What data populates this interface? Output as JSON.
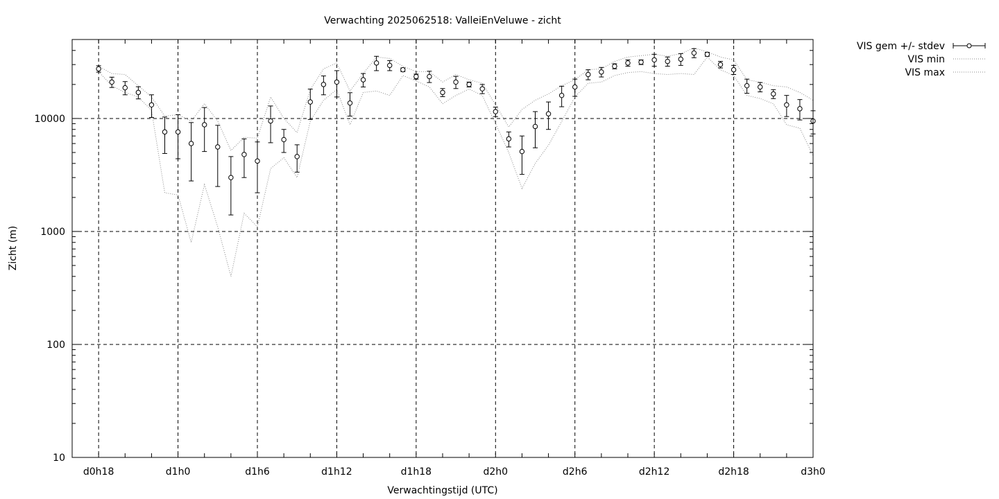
{
  "chart_data": {
    "type": "scatter",
    "title": "Verwachting 2025062518: ValleiEnVeluwe - zicht",
    "xlabel": "Verwachtingstijd (UTC)",
    "ylabel": "Zicht (m)",
    "y_scale": "log",
    "ylim": [
      10,
      50000
    ],
    "xlim_hours": [
      16,
      72
    ],
    "grid": true,
    "legend_position": "outside-right-top",
    "x_ticks": [
      {
        "h": 18,
        "label": "d0h18"
      },
      {
        "h": 24,
        "label": "d1h0"
      },
      {
        "h": 30,
        "label": "d1h6"
      },
      {
        "h": 36,
        "label": "d1h12"
      },
      {
        "h": 42,
        "label": "d1h18"
      },
      {
        "h": 48,
        "label": "d2h0"
      },
      {
        "h": 54,
        "label": "d2h6"
      },
      {
        "h": 60,
        "label": "d2h12"
      },
      {
        "h": 66,
        "label": "d2h18"
      },
      {
        "h": 72,
        "label": "d3h0"
      }
    ],
    "y_ticks": [
      {
        "v": 10,
        "label": "10"
      },
      {
        "v": 100,
        "label": "100"
      },
      {
        "v": 1000,
        "label": "1000"
      },
      {
        "v": 10000,
        "label": "10000"
      }
    ],
    "x": [
      18,
      19,
      20,
      21,
      22,
      23,
      24,
      25,
      26,
      27,
      28,
      29,
      30,
      31,
      32,
      33,
      34,
      35,
      36,
      37,
      38,
      39,
      40,
      41,
      42,
      43,
      44,
      45,
      46,
      47,
      48,
      49,
      50,
      51,
      52,
      53,
      54,
      55,
      56,
      57,
      58,
      59,
      60,
      61,
      62,
      63,
      64,
      65,
      66,
      67,
      68,
      69,
      70,
      71,
      72
    ],
    "series": [
      {
        "name": "VIS gem +/- stdev",
        "mean": [
          27500,
          21000,
          18700,
          17000,
          13200,
          7600,
          7600,
          6000,
          8800,
          5600,
          3000,
          4800,
          4200,
          9500,
          6500,
          4600,
          14000,
          20000,
          21000,
          13700,
          22000,
          31000,
          29500,
          27000,
          23500,
          23500,
          17000,
          21000,
          20000,
          18300,
          11500,
          6600,
          5100,
          8500,
          11000,
          16000,
          19000,
          24500,
          25800,
          29000,
          31000,
          31500,
          33000,
          32000,
          33500,
          38000,
          37000,
          30000,
          27000,
          19500,
          19000,
          16500,
          13200,
          12200,
          9500
        ],
        "stdev": [
          1800,
          2200,
          2500,
          2100,
          3000,
          2700,
          3200,
          3200,
          3700,
          3100,
          1600,
          1800,
          2000,
          3400,
          1500,
          1250,
          4200,
          3800,
          5500,
          3200,
          3000,
          4500,
          3000,
          1000,
          1200,
          2700,
          1400,
          2600,
          1000,
          1700,
          1100,
          1000,
          1900,
          3000,
          3000,
          3300,
          3300,
          2500,
          2500,
          1500,
          2000,
          1500,
          4000,
          3000,
          4000,
          3500,
          1500,
          2000,
          2500,
          2800,
          1800,
          1500,
          2800,
          2500,
          2200
        ]
      },
      {
        "name": "VIS min",
        "values": [
          26000,
          19500,
          17000,
          15500,
          11800,
          2200,
          2100,
          800,
          2600,
          1100,
          400,
          1450,
          1100,
          3600,
          4500,
          3000,
          9500,
          14500,
          18000,
          8800,
          17000,
          17500,
          16000,
          24000,
          21500,
          19000,
          13500,
          16000,
          18200,
          16000,
          9000,
          5000,
          2400,
          4000,
          5800,
          9400,
          15500,
          20500,
          21000,
          24000,
          25500,
          26000,
          25000,
          24500,
          25000,
          24500,
          35000,
          27000,
          24000,
          16000,
          15000,
          13500,
          8800,
          8200,
          4700
        ]
      },
      {
        "name": "VIS max",
        "values": [
          29000,
          25000,
          24500,
          19500,
          15500,
          10500,
          10800,
          9500,
          13500,
          9500,
          5200,
          6800,
          6700,
          15500,
          10000,
          7500,
          18000,
          27500,
          31000,
          17500,
          25000,
          35000,
          34000,
          29000,
          26000,
          26000,
          21000,
          24500,
          22000,
          20500,
          13200,
          8400,
          12000,
          14500,
          16500,
          19500,
          22000,
          27000,
          27500,
          32000,
          35000,
          36000,
          37000,
          35500,
          37500,
          42000,
          39000,
          35000,
          33000,
          22000,
          21000,
          19500,
          19000,
          17000,
          14500
        ]
      }
    ]
  }
}
